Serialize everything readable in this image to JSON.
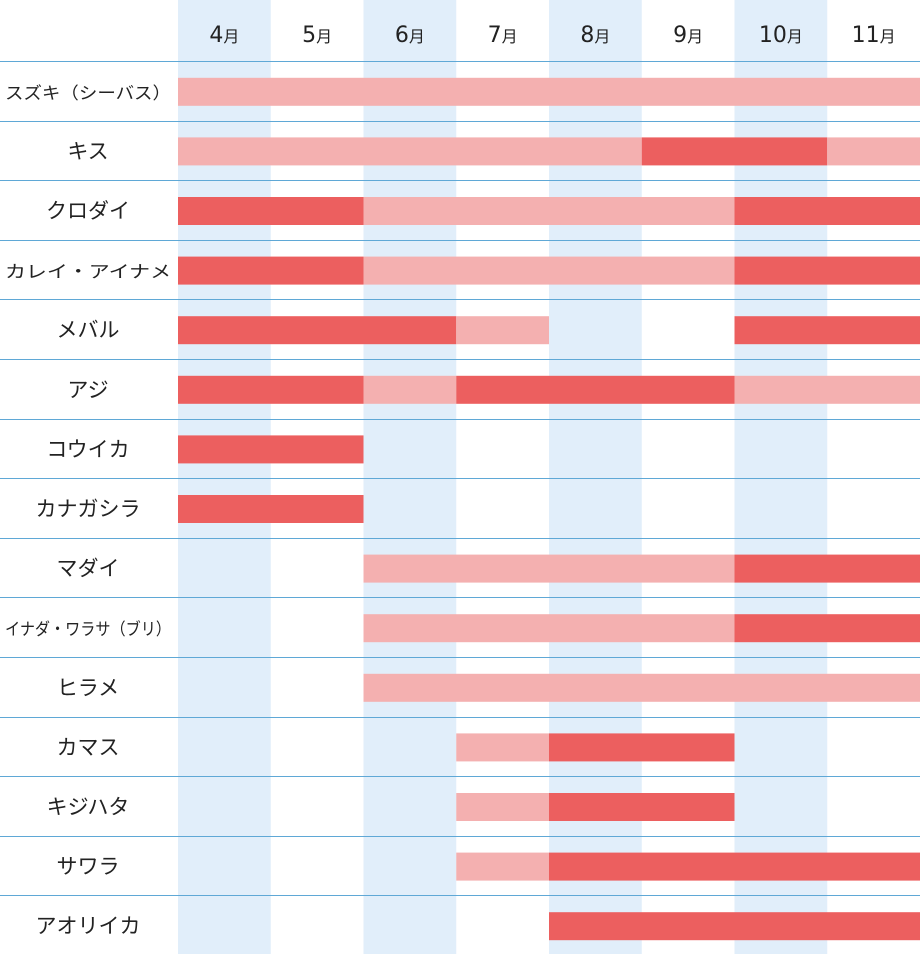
{
  "chart_data": {
    "type": "table",
    "months": [
      "4月",
      "5月",
      "6月",
      "7月",
      "8月",
      "9月",
      "10月",
      "11月"
    ],
    "legend": [],
    "colors": {
      "season": "#f4b0b0",
      "peak": "#ec5f5f",
      "column_shade": "#e1eefa",
      "grid_line": "#5fa8d6"
    },
    "rows": [
      {
        "name": "スズキ（シーバス）",
        "segments": [
          {
            "start": "4月",
            "end": "11月",
            "level": "season"
          }
        ]
      },
      {
        "name": "キス",
        "segments": [
          {
            "start": "4月",
            "end": "8月",
            "level": "season"
          },
          {
            "start": "9月",
            "end": "10月",
            "level": "peak"
          },
          {
            "start": "11月",
            "end": "11月",
            "level": "season"
          }
        ]
      },
      {
        "name": "クロダイ",
        "segments": [
          {
            "start": "4月",
            "end": "5月",
            "level": "peak"
          },
          {
            "start": "6月",
            "end": "9月",
            "level": "season"
          },
          {
            "start": "10月",
            "end": "11月",
            "level": "peak"
          }
        ]
      },
      {
        "name": "カレイ・アイナメ",
        "segments": [
          {
            "start": "4月",
            "end": "5月",
            "level": "peak"
          },
          {
            "start": "6月",
            "end": "9月",
            "level": "season"
          },
          {
            "start": "10月",
            "end": "11月",
            "level": "peak"
          }
        ]
      },
      {
        "name": "メバル",
        "segments": [
          {
            "start": "4月",
            "end": "6月",
            "level": "peak"
          },
          {
            "start": "7月",
            "end": "7月",
            "level": "season"
          },
          {
            "start": "10月",
            "end": "11月",
            "level": "peak"
          }
        ]
      },
      {
        "name": "アジ",
        "segments": [
          {
            "start": "4月",
            "end": "5月",
            "level": "peak"
          },
          {
            "start": "6月",
            "end": "6月",
            "level": "season"
          },
          {
            "start": "7月",
            "end": "9月",
            "level": "peak"
          },
          {
            "start": "10月",
            "end": "11月",
            "level": "season"
          }
        ]
      },
      {
        "name": "コウイカ",
        "segments": [
          {
            "start": "4月",
            "end": "5月",
            "level": "peak"
          }
        ]
      },
      {
        "name": "カナガシラ",
        "segments": [
          {
            "start": "4月",
            "end": "5月",
            "level": "peak"
          }
        ]
      },
      {
        "name": "マダイ",
        "segments": [
          {
            "start": "6月",
            "end": "9月",
            "level": "season"
          },
          {
            "start": "10月",
            "end": "11月",
            "level": "peak"
          }
        ]
      },
      {
        "name": "イナダ・ワラサ（ブリ）",
        "segments": [
          {
            "start": "6月",
            "end": "9月",
            "level": "season"
          },
          {
            "start": "10月",
            "end": "11月",
            "level": "peak"
          }
        ]
      },
      {
        "name": "ヒラメ",
        "segments": [
          {
            "start": "6月",
            "end": "11月",
            "level": "season"
          }
        ]
      },
      {
        "name": "カマス",
        "segments": [
          {
            "start": "7月",
            "end": "7月",
            "level": "season"
          },
          {
            "start": "8月",
            "end": "9月",
            "level": "peak"
          }
        ]
      },
      {
        "name": "キジハタ",
        "segments": [
          {
            "start": "7月",
            "end": "7月",
            "level": "season"
          },
          {
            "start": "8月",
            "end": "9月",
            "level": "peak"
          }
        ]
      },
      {
        "name": "サワラ",
        "segments": [
          {
            "start": "7月",
            "end": "7月",
            "level": "season"
          },
          {
            "start": "8月",
            "end": "11月",
            "level": "peak"
          }
        ]
      },
      {
        "name": "アオリイカ",
        "segments": [
          {
            "start": "8月",
            "end": "11月",
            "level": "peak"
          }
        ]
      }
    ]
  }
}
